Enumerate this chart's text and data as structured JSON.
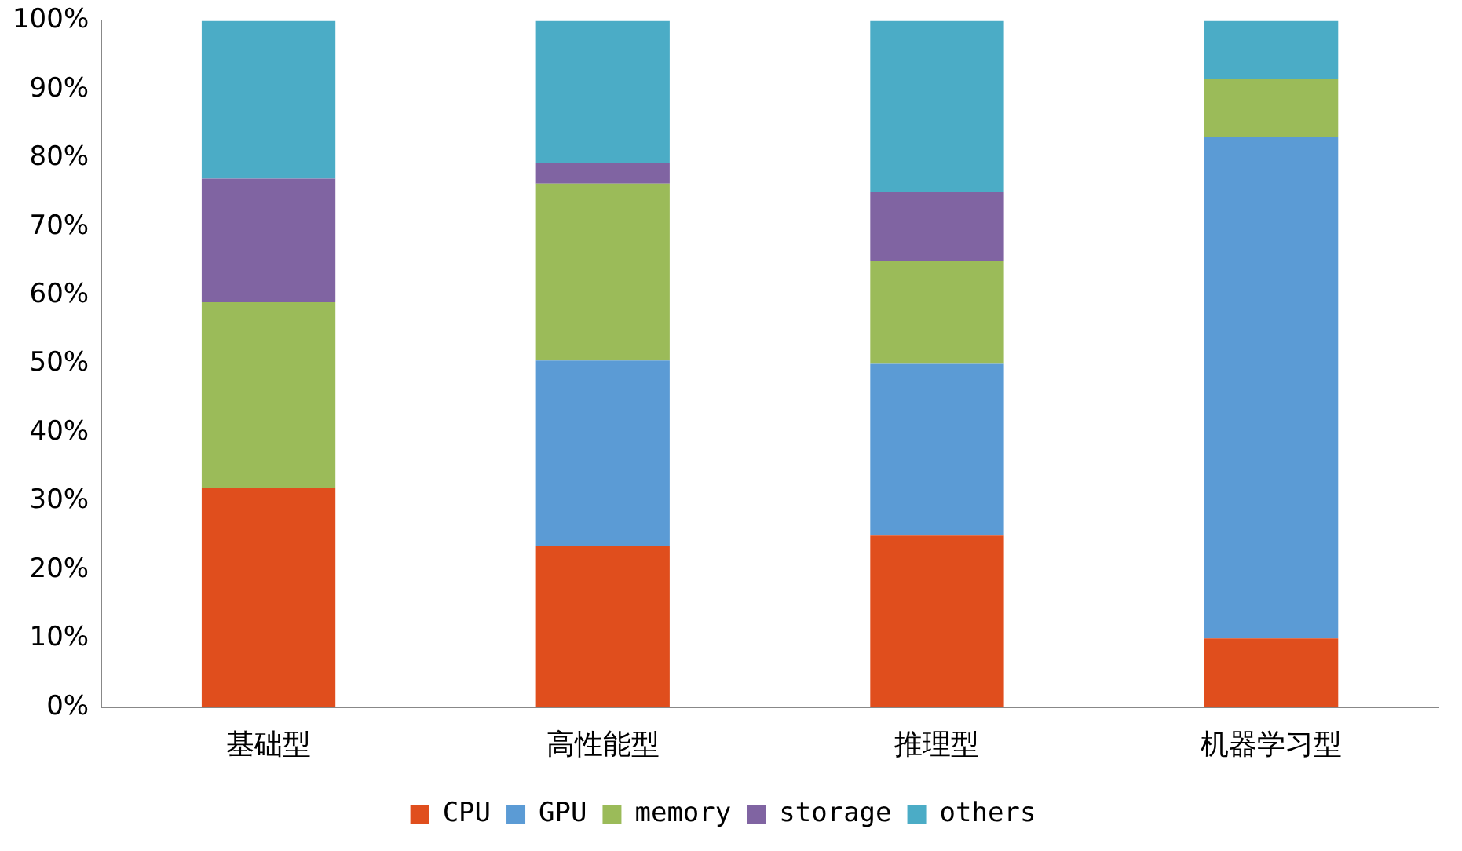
{
  "chart_data": {
    "type": "bar",
    "stacked": true,
    "categories": [
      "基础型",
      "高性能型",
      "推理型",
      "机器学习型"
    ],
    "series": [
      {
        "name": "CPU",
        "color": "#e04e1d",
        "values": [
          32,
          23.5,
          25,
          10
        ]
      },
      {
        "name": "GPU",
        "color": "#5b9bd5",
        "values": [
          0,
          27,
          25,
          73
        ]
      },
      {
        "name": "memory",
        "color": "#9bbb59",
        "values": [
          27,
          25.8,
          15,
          8.5
        ]
      },
      {
        "name": "storage",
        "color": "#8064a2",
        "values": [
          18,
          3,
          10,
          0
        ]
      },
      {
        "name": "others",
        "color": "#4bacc6",
        "values": [
          23,
          20.7,
          25,
          8.5
        ]
      }
    ],
    "ylim": [
      0,
      100
    ],
    "yticks": [
      {
        "value": 0,
        "label": "0%"
      },
      {
        "value": 10,
        "label": "10%"
      },
      {
        "value": 20,
        "label": "20%"
      },
      {
        "value": 30,
        "label": "30%"
      },
      {
        "value": 40,
        "label": "40%"
      },
      {
        "value": 50,
        "label": "50%"
      },
      {
        "value": 60,
        "label": "60%"
      },
      {
        "value": 70,
        "label": "70%"
      },
      {
        "value": 80,
        "label": "80%"
      },
      {
        "value": 90,
        "label": "90%"
      },
      {
        "value": 100,
        "label": "100%"
      }
    ],
    "grid": false,
    "legend": "bottom"
  }
}
